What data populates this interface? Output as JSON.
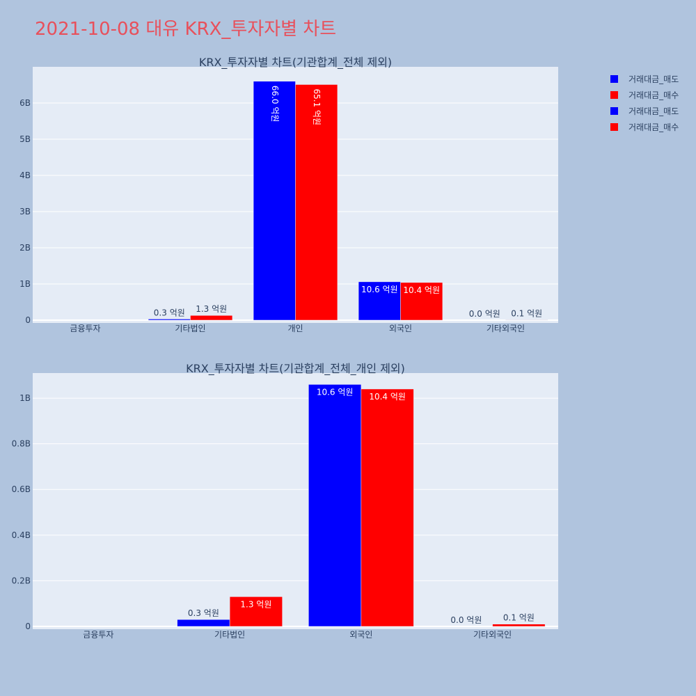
{
  "title": "2021-10-08 대유 KRX_투자자별 차트",
  "colors": {
    "title": "#e8505b",
    "sell": "#0000ff",
    "buy": "#ff0000",
    "plot_bg": "#e5ecf6",
    "page_bg": "#b0c4de",
    "text": "#2a3f5f"
  },
  "legend": {
    "placement": "top-right",
    "items": [
      {
        "label": "거래대금_매도",
        "color": "#0000ff"
      },
      {
        "label": "거래대금_매수",
        "color": "#ff0000"
      },
      {
        "label": "거래대금_매도",
        "color": "#0000ff"
      },
      {
        "label": "거래대금_매수",
        "color": "#ff0000"
      }
    ]
  },
  "chart_data": [
    {
      "type": "bar",
      "title": "KRX_투자자별 차트(기관합계_전체 제외)",
      "categories": [
        "금융투자",
        "기타법인",
        "개인",
        "외국인",
        "기타외국인"
      ],
      "series": [
        {
          "name": "거래대금_매도",
          "color": "#0000ff",
          "values": [
            0,
            30000000,
            6600000000,
            1060000000,
            0
          ],
          "labels": [
            "",
            "0.3 억원",
            "66.0 억원",
            "10.6 억원",
            "0.0 억원"
          ]
        },
        {
          "name": "거래대금_매수",
          "color": "#ff0000",
          "values": [
            0,
            130000000,
            6510000000,
            1040000000,
            10000000
          ],
          "labels": [
            "",
            "1.3 억원",
            "65.1 억원",
            "10.4 억원",
            "0.1 억원"
          ]
        }
      ],
      "yticks": [
        0,
        1000000000,
        2000000000,
        3000000000,
        4000000000,
        5000000000,
        6000000000
      ],
      "ytick_labels": [
        "0",
        "1B",
        "2B",
        "3B",
        "4B",
        "5B",
        "6B"
      ],
      "ylim": [
        0,
        7000000000
      ],
      "grid": true
    },
    {
      "type": "bar",
      "title": "KRX_투자자별 차트(기관합계_전체_개인 제외)",
      "categories": [
        "금융투자",
        "기타법인",
        "외국인",
        "기타외국인"
      ],
      "series": [
        {
          "name": "거래대금_매도",
          "color": "#0000ff",
          "values": [
            0,
            30000000,
            1060000000,
            0
          ],
          "labels": [
            "",
            "0.3 억원",
            "10.6 억원",
            "0.0 억원"
          ]
        },
        {
          "name": "거래대금_매수",
          "color": "#ff0000",
          "values": [
            0,
            130000000,
            1040000000,
            10000000
          ],
          "labels": [
            "",
            "1.3 억원",
            "10.4 억원",
            "0.1 억원"
          ]
        }
      ],
      "yticks": [
        0,
        200000000,
        400000000,
        600000000,
        800000000,
        1000000000
      ],
      "ytick_labels": [
        "0",
        "0.2B",
        "0.4B",
        "0.6B",
        "0.8B",
        "1B"
      ],
      "ylim": [
        0,
        1110000000
      ],
      "grid": true
    }
  ]
}
